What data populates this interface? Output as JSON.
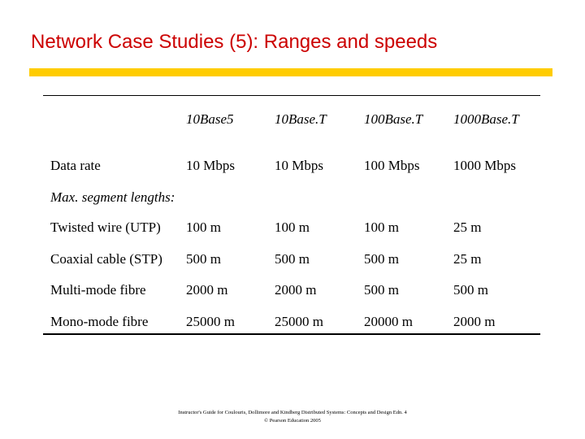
{
  "slide": {
    "title": "Network Case Studies (5): Ranges and speeds"
  },
  "table": {
    "columns": [
      "10Base5",
      "10Base.T",
      "100Base.T",
      "1000Base.T"
    ],
    "data_rate_row": {
      "label": "Data rate",
      "values": [
        "10 Mbps",
        "10 Mbps",
        "100 Mbps",
        "1000 Mbps"
      ]
    },
    "section_label": "Max. segment lengths:",
    "rows": [
      {
        "label": "Twisted wire (UTP)",
        "values": [
          "100 m",
          "100 m",
          "100 m",
          "25 m"
        ]
      },
      {
        "label": "Coaxial cable (STP)",
        "values": [
          "500 m",
          "500 m",
          "500 m",
          "25 m"
        ]
      },
      {
        "label": "Multi-mode fibre",
        "values": [
          "2000 m",
          "2000 m",
          "500 m",
          "500 m"
        ]
      },
      {
        "label": "Mono-mode fibre",
        "values": [
          "25000 m",
          "25000 m",
          "20000 m",
          "2000 m"
        ]
      }
    ]
  },
  "footer": {
    "line1": "Instructor's Guide for Coulouris, Dollimore and Kindberg Distributed Systems: Concepts and Design Edn. 4",
    "line2": "© Pearson Education 2005"
  }
}
